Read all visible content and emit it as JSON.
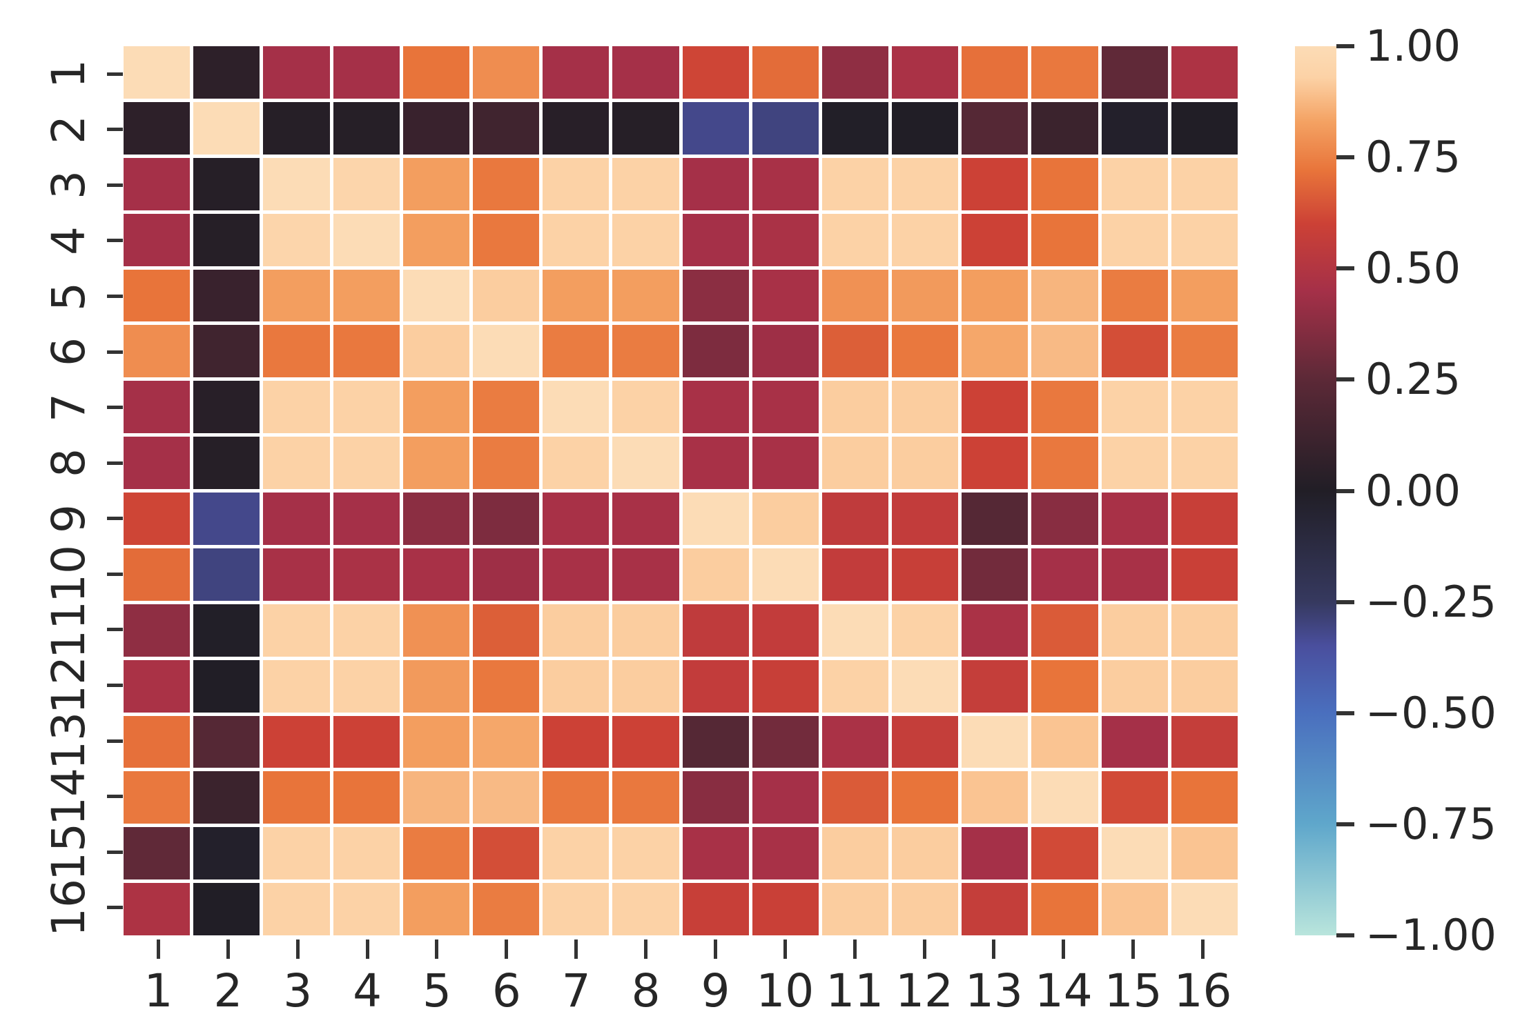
{
  "chart_data": {
    "type": "heatmap",
    "title": "",
    "xlabel": "",
    "ylabel": "",
    "x_labels": [
      "1",
      "2",
      "3",
      "4",
      "5",
      "6",
      "7",
      "8",
      "9",
      "10",
      "11",
      "12",
      "13",
      "14",
      "15",
      "16"
    ],
    "y_labels": [
      "1",
      "2",
      "3",
      "4",
      "5",
      "6",
      "7",
      "8",
      "9",
      "10",
      "11",
      "12",
      "13",
      "14",
      "15",
      "16"
    ],
    "y_tick_rotation_deg": 90,
    "vmin": -1.0,
    "vmax": 1.0,
    "grid_line_color": "#ffffff",
    "matrix": [
      [
        1.0,
        0.05,
        0.45,
        0.45,
        0.72,
        0.78,
        0.45,
        0.45,
        0.61,
        0.7,
        0.39,
        0.47,
        0.71,
        0.73,
        0.26,
        0.48
      ],
      [
        0.05,
        1.0,
        0.02,
        0.02,
        0.1,
        0.13,
        0.03,
        0.02,
        -0.32,
        -0.3,
        -0.01,
        0.0,
        0.22,
        0.11,
        -0.02,
        0.0
      ],
      [
        0.45,
        0.02,
        1.0,
        0.95,
        0.82,
        0.73,
        0.93,
        0.93,
        0.45,
        0.46,
        0.93,
        0.93,
        0.6,
        0.72,
        0.93,
        0.93
      ],
      [
        0.45,
        0.02,
        0.95,
        1.0,
        0.82,
        0.73,
        0.93,
        0.93,
        0.45,
        0.47,
        0.93,
        0.93,
        0.6,
        0.72,
        0.93,
        0.93
      ],
      [
        0.72,
        0.1,
        0.82,
        0.82,
        1.0,
        0.92,
        0.82,
        0.82,
        0.38,
        0.46,
        0.79,
        0.81,
        0.82,
        0.87,
        0.74,
        0.82
      ],
      [
        0.78,
        0.13,
        0.73,
        0.73,
        0.92,
        1.0,
        0.74,
        0.74,
        0.34,
        0.43,
        0.67,
        0.73,
        0.84,
        0.88,
        0.63,
        0.74
      ],
      [
        0.45,
        0.03,
        0.93,
        0.93,
        0.82,
        0.74,
        1.0,
        0.93,
        0.46,
        0.46,
        0.92,
        0.92,
        0.6,
        0.73,
        0.93,
        0.93
      ],
      [
        0.45,
        0.02,
        0.93,
        0.93,
        0.82,
        0.74,
        0.93,
        1.0,
        0.46,
        0.46,
        0.92,
        0.92,
        0.6,
        0.73,
        0.93,
        0.93
      ],
      [
        0.61,
        -0.32,
        0.45,
        0.45,
        0.38,
        0.34,
        0.46,
        0.46,
        1.0,
        0.92,
        0.55,
        0.56,
        0.22,
        0.37,
        0.46,
        0.58
      ],
      [
        0.7,
        -0.3,
        0.46,
        0.47,
        0.46,
        0.43,
        0.46,
        0.46,
        0.92,
        1.0,
        0.56,
        0.58,
        0.31,
        0.45,
        0.46,
        0.59
      ],
      [
        0.39,
        -0.01,
        0.93,
        0.93,
        0.79,
        0.67,
        0.92,
        0.92,
        0.55,
        0.56,
        1.0,
        0.93,
        0.47,
        0.66,
        0.92,
        0.92
      ],
      [
        0.47,
        0.0,
        0.93,
        0.93,
        0.81,
        0.73,
        0.92,
        0.92,
        0.56,
        0.58,
        0.93,
        1.0,
        0.57,
        0.72,
        0.92,
        0.92
      ],
      [
        0.71,
        0.22,
        0.6,
        0.6,
        0.82,
        0.84,
        0.6,
        0.6,
        0.22,
        0.31,
        0.47,
        0.57,
        1.0,
        0.9,
        0.45,
        0.57
      ],
      [
        0.73,
        0.11,
        0.72,
        0.72,
        0.87,
        0.88,
        0.73,
        0.73,
        0.37,
        0.45,
        0.66,
        0.72,
        0.9,
        1.0,
        0.62,
        0.72
      ],
      [
        0.26,
        -0.02,
        0.93,
        0.93,
        0.74,
        0.63,
        0.93,
        0.93,
        0.46,
        0.46,
        0.92,
        0.92,
        0.45,
        0.62,
        1.0,
        0.9
      ],
      [
        0.48,
        0.0,
        0.93,
        0.93,
        0.82,
        0.74,
        0.93,
        0.93,
        0.58,
        0.59,
        0.92,
        0.92,
        0.57,
        0.72,
        0.9,
        1.0
      ]
    ],
    "colormap": {
      "name": "icefire-like-diverging",
      "stops": [
        {
          "v": -1.0,
          "c": "#b9e5dc"
        },
        {
          "v": -0.75,
          "c": "#5fa7cb"
        },
        {
          "v": -0.5,
          "c": "#4a6fbe"
        },
        {
          "v": -0.35,
          "c": "#4a4f9e"
        },
        {
          "v": -0.25,
          "c": "#36395f"
        },
        {
          "v": 0.0,
          "c": "#211e26"
        },
        {
          "v": 0.25,
          "c": "#5c2937"
        },
        {
          "v": 0.45,
          "c": "#a53048"
        },
        {
          "v": 0.6,
          "c": "#cc4136"
        },
        {
          "v": 0.72,
          "c": "#e8743a"
        },
        {
          "v": 0.83,
          "c": "#f4a263"
        },
        {
          "v": 0.93,
          "c": "#fcd2a6"
        },
        {
          "v": 1.0,
          "c": "#fcdcb6"
        }
      ]
    },
    "colorbar": {
      "position": "right",
      "tick_labels": [
        "1.00",
        "0.75",
        "0.50",
        "0.25",
        "0.00",
        "−0.25",
        "−0.50",
        "−0.75",
        "−1.00"
      ],
      "tick_values": [
        1.0,
        0.75,
        0.5,
        0.25,
        0.0,
        -0.25,
        -0.5,
        -0.75,
        -1.0
      ]
    }
  }
}
